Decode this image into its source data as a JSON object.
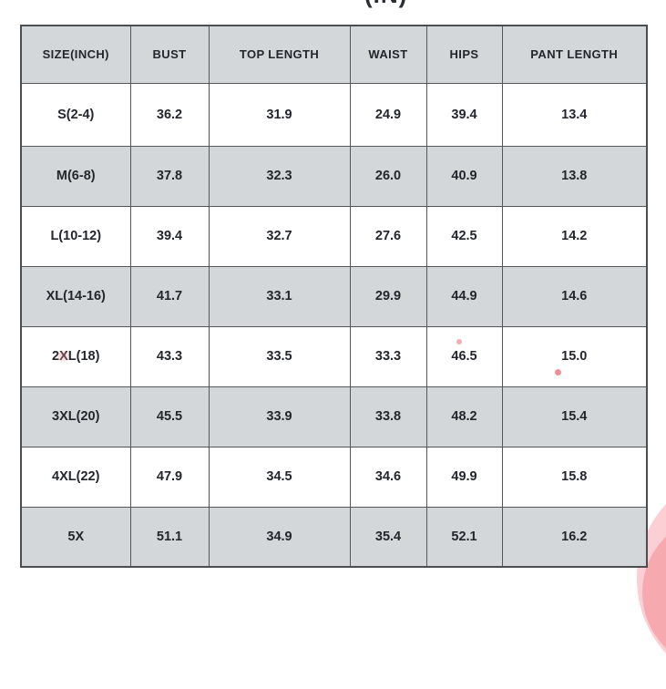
{
  "title_partial": "(IN)",
  "table": {
    "headers": [
      "SIZE(INCH)",
      "BUST",
      "TOP LENGTH",
      "WAIST",
      "HIPS",
      "PANT LENGTH"
    ],
    "rows": [
      [
        "S(2-4)",
        "36.2",
        "31.9",
        "24.9",
        "39.4",
        "13.4"
      ],
      [
        "M(6-8)",
        "37.8",
        "32.3",
        "26.0",
        "40.9",
        "13.8"
      ],
      [
        "L(10-12)",
        "39.4",
        "32.7",
        "27.6",
        "42.5",
        "14.2"
      ],
      [
        "XL(14-16)",
        "41.7",
        "33.1",
        "29.9",
        "44.9",
        "14.6"
      ],
      [
        "2XL(18)",
        "43.3",
        "33.5",
        "33.3",
        "46.5",
        "15.0"
      ],
      [
        "3XL(20)",
        "45.5",
        "33.9",
        "33.8",
        "48.2",
        "15.4"
      ],
      [
        "4XL(22)",
        "47.9",
        "34.5",
        "34.6",
        "49.9",
        "15.8"
      ],
      [
        "5X",
        "51.1",
        "34.9",
        "35.4",
        "52.1",
        "16.2"
      ]
    ]
  },
  "colors": {
    "row_shade": "#d3d7da",
    "row_white": "#ffffff",
    "border": "#54575a",
    "text": "#23262c",
    "pink_light": "#fbcfd3",
    "pink_dark": "#f6aab0"
  },
  "decorations": {
    "blob": "pink-circle-bottom-right",
    "specks": "small-pink-dots-over-2xl-row"
  }
}
